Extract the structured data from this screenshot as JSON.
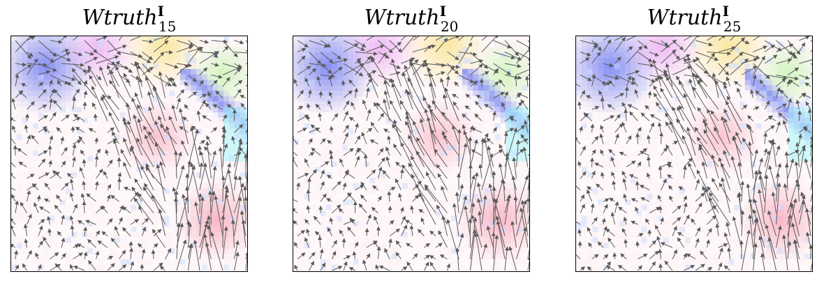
{
  "chart_data": [
    {
      "type": "heatmap",
      "title_main": "Wtruth",
      "title_superscript": "I",
      "title_subscript": "15",
      "xlabel": "",
      "ylabel": "",
      "axes_ticks": "none",
      "grid": false,
      "overlay": "quiver (vector arrows) over colour-coded direction field",
      "colors": {
        "arrow": "#5a5a5a",
        "blue": "#6f7cf2",
        "magenta": "#e7a0f2",
        "yellow": "#f9e48a",
        "green": "#b6f49a",
        "cyan": "#a6f6f8",
        "pink": "#f79bb0"
      }
    },
    {
      "type": "heatmap",
      "title_main": "Wtruth",
      "title_superscript": "I",
      "title_subscript": "20",
      "xlabel": "",
      "ylabel": "",
      "axes_ticks": "none",
      "grid": false,
      "overlay": "quiver (vector arrows) over colour-coded direction field",
      "colors": {
        "arrow": "#5a5a5a",
        "blue": "#6f7cf2",
        "magenta": "#e7a0f2",
        "yellow": "#f9e48a",
        "green": "#b6f49a",
        "cyan": "#a6f6f8",
        "pink": "#f79bb0"
      }
    },
    {
      "type": "heatmap",
      "title_main": "Wtruth",
      "title_superscript": "I",
      "title_subscript": "25",
      "xlabel": "",
      "ylabel": "",
      "axes_ticks": "none",
      "grid": false,
      "overlay": "quiver (vector arrows) over colour-coded direction field",
      "colors": {
        "arrow": "#5a5a5a",
        "blue": "#6f7cf2",
        "magenta": "#e7a0f2",
        "yellow": "#f9e48a",
        "green": "#b6f49a",
        "cyan": "#a6f6f8",
        "pink": "#f79bb0"
      }
    }
  ]
}
